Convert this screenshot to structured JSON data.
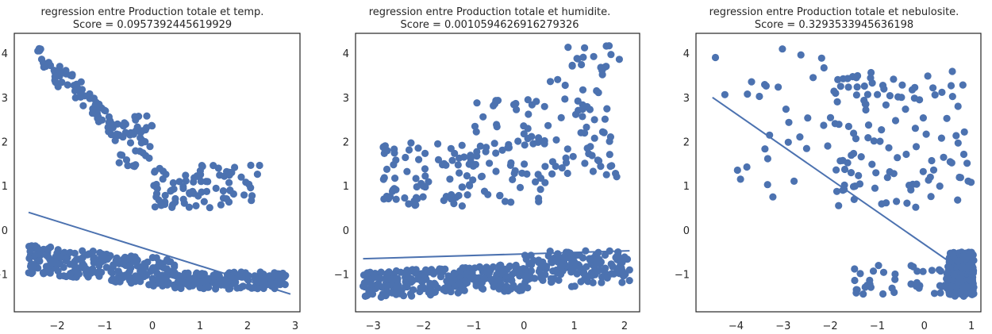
{
  "chart_data": [
    {
      "type": "scatter",
      "title": "regression entre Production totale et temp.",
      "subtitle": "Score = 0.0957392445619929",
      "xlim": [
        -2.9,
        3.1
      ],
      "ylim": [
        -1.85,
        4.45
      ],
      "xticks": [
        -2,
        -1,
        0,
        1,
        2,
        3
      ],
      "yticks": [
        -1,
        0,
        1,
        2,
        3,
        4
      ],
      "fit_line": {
        "x": [
          -2.6,
          2.9
        ],
        "y": [
          0.4,
          -1.45
        ]
      },
      "clusters": [
        {
          "x": [
            -2.5,
            -1.95
          ],
          "y": [
            3.4,
            4.1
          ],
          "n": 20
        },
        {
          "x": [
            -1.95,
            -1.4
          ],
          "y": [
            2.9,
            3.7
          ],
          "n": 25
        },
        {
          "x": [
            -1.4,
            -0.7
          ],
          "y": [
            2.0,
            3.1
          ],
          "n": 40
        },
        {
          "x": [
            -0.7,
            0.0
          ],
          "y": [
            1.4,
            2.6
          ],
          "n": 40
        },
        {
          "x": [
            0.0,
            1.0
          ],
          "y": [
            0.5,
            1.4
          ],
          "n": 45
        },
        {
          "x": [
            1.0,
            2.3
          ],
          "y": [
            0.5,
            1.5
          ],
          "n": 40
        },
        {
          "x": [
            -2.6,
            2.8
          ],
          "y": [
            -1.45,
            -0.45
          ],
          "n": 420,
          "shape": "decreasing-band"
        }
      ]
    },
    {
      "type": "scatter",
      "title": "regression entre Production totale et humidite.",
      "subtitle": "Score = 0.0010594626916279326",
      "xlim": [
        -3.35,
        2.3
      ],
      "ylim": [
        -1.85,
        4.45
      ],
      "xticks": [
        -3,
        -2,
        -1,
        0,
        1,
        2
      ],
      "yticks": [
        -1,
        0,
        1,
        2,
        3,
        4
      ],
      "fit_line": {
        "x": [
          -3.2,
          2.1
        ],
        "y": [
          -0.65,
          -0.47
        ]
      },
      "clusters": [
        {
          "x": [
            -2.8,
            -1.0
          ],
          "y": [
            0.5,
            2.0
          ],
          "n": 80
        },
        {
          "x": [
            -1.0,
            0.5
          ],
          "y": [
            0.6,
            3.0
          ],
          "n": 70
        },
        {
          "x": [
            0.5,
            1.9
          ],
          "y": [
            1.2,
            4.2
          ],
          "n": 70
        },
        {
          "x": [
            -3.2,
            2.1
          ],
          "y": [
            -1.5,
            -0.4
          ],
          "n": 420,
          "shape": "increasing-band"
        }
      ]
    },
    {
      "type": "scatter",
      "title": "regression entre Production totale et nebulosite.",
      "subtitle": "Score = 0.3293533945636198",
      "xlim": [
        -4.85,
        1.2
      ],
      "ylim": [
        -1.85,
        4.45
      ],
      "xticks": [
        -4,
        -3,
        -2,
        -1,
        0,
        1
      ],
      "yticks": [
        -1,
        0,
        1,
        2,
        3,
        4
      ],
      "fit_line": {
        "x": [
          -4.5,
          1.05
        ],
        "y": [
          3.0,
          -1.1
        ]
      },
      "clusters": [
        {
          "x": [
            -4.5,
            -2.0
          ],
          "y": [
            0.7,
            4.2
          ],
          "n": 30
        },
        {
          "x": [
            -2.0,
            1.0
          ],
          "y": [
            0.5,
            3.6
          ],
          "n": 120
        },
        {
          "x": [
            0.5,
            1.05
          ],
          "y": [
            -1.5,
            -0.5
          ],
          "n": 300,
          "shape": "dense-corner"
        },
        {
          "x": [
            -1.5,
            0.5
          ],
          "y": [
            -1.45,
            -0.8
          ],
          "n": 40
        }
      ]
    }
  ]
}
